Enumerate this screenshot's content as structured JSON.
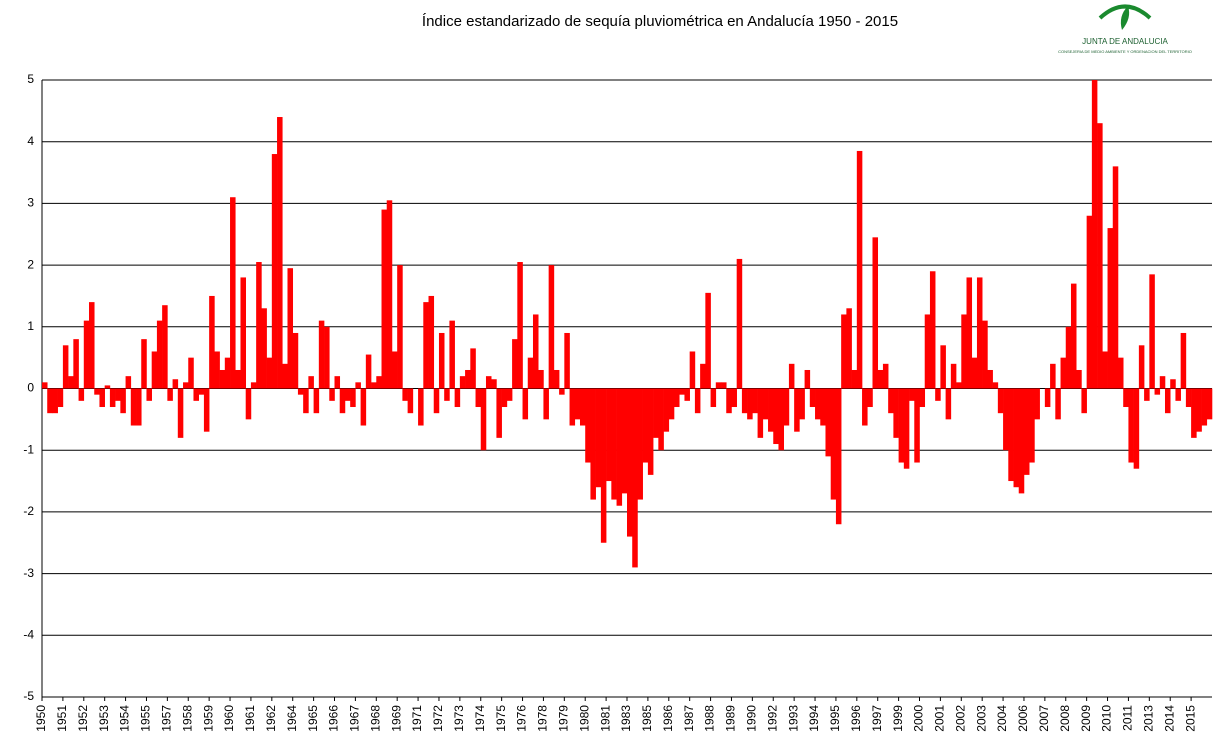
{
  "chart_data": {
    "type": "bar",
    "title": "Índice estandarizado de sequía pluviométrica en Andalucía 1950 - 2015",
    "logo_title": "JUNTA DE ANDALUCIA",
    "logo_subtitle": "CONSEJERIA DE MEDIO AMBIENTE Y ORDENACION DEL TERRITORIO",
    "color": "#ff0000",
    "grid": true,
    "ylim": [
      -5,
      5
    ],
    "yticks": [
      -5,
      -4,
      -3,
      -2,
      -1,
      0,
      1,
      2,
      3,
      4,
      5
    ],
    "categories": [
      "1950",
      null,
      null,
      null,
      "1951",
      null,
      null,
      null,
      "1952",
      null,
      null,
      null,
      "1953",
      null,
      null,
      null,
      "1954",
      null,
      null,
      null,
      "1955",
      null,
      null,
      null,
      "1957",
      null,
      null,
      null,
      "1958",
      null,
      null,
      null,
      "1959",
      null,
      null,
      null,
      "1960",
      null,
      null,
      null,
      "1961",
      null,
      null,
      null,
      "1962",
      null,
      null,
      null,
      "1964",
      null,
      null,
      null,
      "1965",
      null,
      null,
      null,
      "1966",
      null,
      null,
      null,
      "1967",
      null,
      null,
      null,
      "1968",
      null,
      null,
      null,
      "1969",
      null,
      null,
      null,
      "1971",
      null,
      null,
      null,
      "1972",
      null,
      null,
      null,
      "1973",
      null,
      null,
      null,
      "1974",
      null,
      null,
      null,
      "1975",
      null,
      null,
      null,
      "1976",
      null,
      null,
      null,
      "1978",
      null,
      null,
      null,
      "1979",
      null,
      null,
      null,
      "1980",
      null,
      null,
      null,
      "1981",
      null,
      null,
      null,
      "1983",
      null,
      null,
      null,
      "1985",
      null,
      null,
      null,
      "1986",
      null,
      null,
      null,
      "1987",
      null,
      null,
      null,
      "1988",
      null,
      null,
      null,
      "1989",
      null,
      null,
      null,
      "1990",
      null,
      null,
      null,
      "1992",
      null,
      null,
      null,
      "1993",
      null,
      null,
      null,
      "1994",
      null,
      null,
      null,
      "1995",
      null,
      null,
      null,
      "1996",
      null,
      null,
      null,
      "1997",
      null,
      null,
      null,
      "1999",
      null,
      null,
      null,
      "2000",
      null,
      null,
      null,
      "2001",
      null,
      null,
      null,
      "2002",
      null,
      null,
      null,
      "2003",
      null,
      null,
      null,
      "2004",
      null,
      null,
      null,
      "2006",
      null,
      null,
      null,
      "2007",
      null,
      null,
      null,
      "2008",
      null,
      null,
      null,
      "2009",
      null,
      null,
      null,
      "2010",
      null,
      null,
      null,
      "2011",
      null,
      null,
      null,
      "2013",
      null,
      null,
      null,
      "2014",
      null,
      null,
      null,
      "2015",
      null,
      null,
      null
    ],
    "values": [
      0.1,
      -0.4,
      -0.4,
      -0.3,
      0.7,
      0.2,
      0.8,
      -0.2,
      1.1,
      1.4,
      -0.1,
      -0.3,
      0.05,
      -0.3,
      -0.2,
      -0.4,
      0.2,
      -0.6,
      -0.6,
      0.8,
      -0.2,
      0.6,
      1.1,
      1.35,
      -0.2,
      0.15,
      -0.8,
      0.1,
      0.5,
      -0.2,
      -0.1,
      -0.7,
      1.5,
      0.6,
      0.3,
      0.5,
      3.1,
      0.3,
      1.8,
      -0.5,
      0.1,
      2.05,
      1.3,
      0.5,
      3.8,
      4.4,
      0.4,
      1.95,
      0.9,
      -0.1,
      -0.4,
      0.2,
      -0.4,
      1.1,
      1.0,
      -0.2,
      0.2,
      -0.4,
      -0.2,
      -0.3,
      0.1,
      -0.6,
      0.55,
      0.1,
      0.2,
      2.9,
      3.05,
      0.6,
      2.0,
      -0.2,
      -0.4,
      0.0,
      -0.6,
      1.4,
      1.5,
      -0.4,
      0.9,
      -0.2,
      1.1,
      -0.3,
      0.2,
      0.3,
      0.65,
      -0.3,
      -1.0,
      0.2,
      0.15,
      -0.8,
      -0.3,
      -0.2,
      0.8,
      2.05,
      -0.5,
      0.5,
      1.2,
      0.3,
      -0.5,
      2.0,
      0.3,
      -0.1,
      0.9,
      -0.6,
      -0.5,
      -0.6,
      -1.2,
      -1.8,
      -1.6,
      -2.5,
      -1.5,
      -1.8,
      -1.9,
      -1.7,
      -2.4,
      -2.9,
      -1.8,
      -1.2,
      -1.4,
      -0.8,
      -1.0,
      -0.7,
      -0.5,
      -0.3,
      -0.1,
      -0.2,
      0.6,
      -0.4,
      0.4,
      1.55,
      -0.3,
      0.1,
      0.1,
      -0.4,
      -0.3,
      2.1,
      -0.4,
      -0.5,
      -0.4,
      -0.8,
      -0.5,
      -0.7,
      -0.9,
      -1.0,
      -0.6,
      0.4,
      -0.7,
      -0.5,
      0.3,
      -0.3,
      -0.5,
      -0.6,
      -1.1,
      -1.8,
      -2.2,
      1.2,
      1.3,
      0.3,
      3.85,
      -0.6,
      -0.3,
      2.45,
      0.3,
      0.4,
      -0.4,
      -0.8,
      -1.2,
      -1.3,
      -0.2,
      -1.2,
      -0.3,
      1.2,
      1.9,
      -0.2,
      0.7,
      -0.5,
      0.4,
      0.1,
      1.2,
      1.8,
      0.5,
      1.8,
      1.1,
      0.3,
      0.1,
      -0.4,
      -1.0,
      -1.5,
      -1.6,
      -1.7,
      -1.4,
      -1.2,
      -0.5,
      0.0,
      -0.3,
      0.4,
      -0.5,
      0.5,
      1.0,
      1.7,
      0.3,
      -0.4,
      2.8,
      5.0,
      4.3,
      0.6,
      2.6,
      3.6,
      0.5,
      -0.3,
      -1.2,
      -1.3,
      0.7,
      -0.2,
      1.85,
      -0.1,
      0.2,
      -0.4,
      0.15,
      -0.2,
      0.9,
      -0.3,
      -0.8,
      -0.7,
      -0.6,
      -0.5
    ]
  }
}
